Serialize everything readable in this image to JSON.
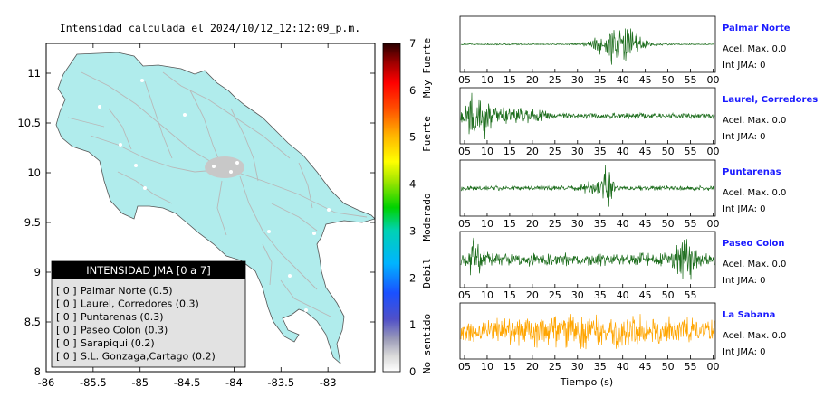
{
  "map_panel": {
    "title": "Intensidad calculada el 2024/10/12_12:12:09_p.m.",
    "x_ticks": [
      "-86",
      "-85.5",
      "-85",
      "-84.5",
      "-84",
      "-83.5",
      "-83"
    ],
    "y_ticks": [
      "11",
      "10.5",
      "10",
      "9.5",
      "9",
      "8.5",
      "8"
    ],
    "xlim": [
      -86,
      -82.5
    ],
    "ylim": [
      8,
      11.3
    ],
    "land_color": "#b0ecec",
    "road_color": "#b8b8b8"
  },
  "legend": {
    "title": "INTENSIDAD JMA [0 a 7]",
    "items": [
      {
        "badge": "[ 0 ]",
        "label": "Palmar Norte (0.5)"
      },
      {
        "badge": "[ 0 ]",
        "label": "Laurel, Corredores (0.3)"
      },
      {
        "badge": "[ 0 ]",
        "label": "Puntarenas (0.3)"
      },
      {
        "badge": "[ 0 ]",
        "label": "Paseo Colon (0.3)"
      },
      {
        "badge": "[ 0 ]",
        "label": "Sarapiqui (0.2)"
      },
      {
        "badge": "[ 0 ]",
        "label": "S.L. Gonzaga,Cartago (0.2)"
      }
    ]
  },
  "colorbar": {
    "ticks": [
      "7",
      "6",
      "5",
      "4",
      "3",
      "2",
      "1",
      "0"
    ],
    "range": [
      0,
      7
    ],
    "levels": [
      "Muy Fuerte",
      "Fuerte",
      "Moderado",
      "Debil",
      "No sentido"
    ]
  },
  "chart_data": [
    {
      "type": "line",
      "name": "Palmar Norte",
      "ticks": [
        "05",
        "10",
        "15",
        "20",
        "25",
        "30",
        "35",
        "40",
        "45",
        "50",
        "55",
        "00"
      ],
      "accel_label": "Acel. Max. 0.0",
      "jma_label": "Int JMA: 0",
      "color": "#1e6e1e",
      "envelope": {
        "base": 0.03,
        "bursts": [
          {
            "t": 0.62,
            "w": 0.085,
            "a": 0.95
          }
        ]
      }
    },
    {
      "type": "line",
      "name": "Laurel, Corredores",
      "ticks": [
        "05",
        "10",
        "15",
        "20",
        "25",
        "30",
        "35",
        "40",
        "45",
        "50",
        "55",
        "00"
      ],
      "accel_label": "Acel. Max. 0.0",
      "jma_label": "Int JMA: 0",
      "color": "#1e6e1e",
      "envelope": {
        "base": 0.12,
        "bursts": [
          {
            "t": 0.06,
            "w": 0.06,
            "a": 0.9
          },
          {
            "t": 0.2,
            "w": 0.12,
            "a": 0.3
          }
        ]
      }
    },
    {
      "type": "line",
      "name": "Puntarenas",
      "ticks": [
        "05",
        "10",
        "15",
        "20",
        "25",
        "30",
        "35",
        "40",
        "45",
        "50",
        "55",
        "00"
      ],
      "accel_label": "Acel. Max. 0.0",
      "jma_label": "Int JMA: 0",
      "color": "#1e6e1e",
      "envelope": {
        "base": 0.1,
        "bursts": [
          {
            "t": 0.58,
            "w": 0.018,
            "a": 1.0
          },
          {
            "t": 0.53,
            "w": 0.05,
            "a": 0.3
          }
        ]
      }
    },
    {
      "type": "line",
      "name": "Paseo Colon",
      "ticks": [
        "05",
        "10",
        "15",
        "20",
        "25",
        "30",
        "35",
        "40",
        "45",
        "50",
        "55"
      ],
      "accel_label": "Acel. Max. 0.0",
      "jma_label": "Int JMA: 0",
      "color": "#1e6e1e",
      "envelope": {
        "base": 0.28,
        "bursts": [
          {
            "t": 0.06,
            "w": 0.03,
            "a": 0.8
          },
          {
            "t": 0.88,
            "w": 0.04,
            "a": 0.95
          }
        ]
      }
    },
    {
      "type": "line",
      "name": "La Sabana",
      "ticks": [
        "05",
        "10",
        "15",
        "20",
        "25",
        "30",
        "35",
        "40",
        "45",
        "50",
        "55",
        "00"
      ],
      "accel_label": "Acel. Max. 0.0",
      "jma_label": "Int JMA: 0",
      "color": "#ffa500",
      "envelope": {
        "base": 0.55,
        "bursts": [
          {
            "t": 0.5,
            "w": 0.25,
            "a": 0.25
          }
        ]
      }
    }
  ],
  "time_axis_label": "Tiempo (s)"
}
